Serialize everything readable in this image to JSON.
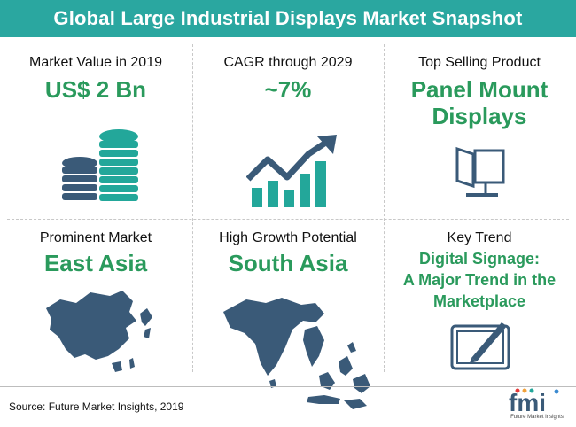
{
  "header": {
    "title": "Global Large Industrial Displays Market Snapshot"
  },
  "cells": {
    "market_value": {
      "label": "Market Value in 2019",
      "value": "US$ 2 Bn"
    },
    "cagr": {
      "label": "CAGR through 2029",
      "value": "~7%"
    },
    "top_product": {
      "label": "Top Selling Product",
      "value_line1": "Panel Mount",
      "value_line2": "Displays"
    },
    "prominent_market": {
      "label": "Prominent Market",
      "value": "East Asia"
    },
    "high_growth": {
      "label": "High Growth Potential",
      "value": "South Asia"
    },
    "key_trend": {
      "label": "Key Trend",
      "value_line1": "Digital Signage:",
      "value_line2": "A Major Trend in the",
      "value_line3": "Marketplace"
    }
  },
  "footer": {
    "source": "Source: Future Market Insights, 2019"
  },
  "logo": {
    "text": "fmi",
    "subtext": "Future Market Insights"
  },
  "colors": {
    "header_bg": "#2aa7a0",
    "accent_green": "#2a9a5c",
    "icon_dark": "#3a5a78",
    "icon_teal": "#23a79a"
  },
  "icons": [
    "coins-stack-icon",
    "growth-chart-icon",
    "panel-monitor-icon",
    "east-asia-map-icon",
    "south-asia-map-icon",
    "digital-signage-icon"
  ]
}
